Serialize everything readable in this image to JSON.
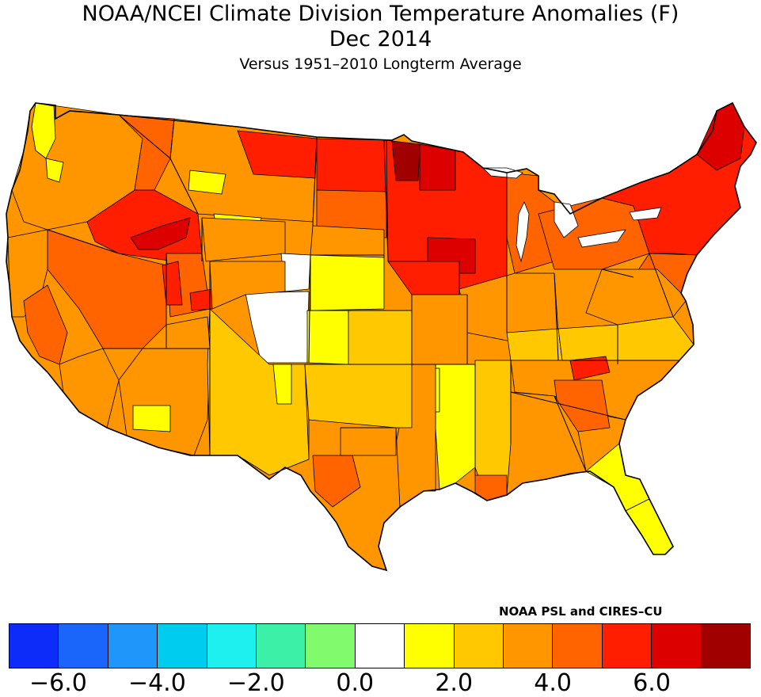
{
  "title": "NOAA/NCEI Climate Division Temperature Anomalies (F)",
  "subtitle_date": "Dec 2014",
  "subtitle_baseline": "Versus 1951–2010 Longterm Average",
  "credit": "NOAA PSL and CIRES–CU",
  "legend": {
    "colors": [
      "#0d2cfa",
      "#1a66fa",
      "#1e96fa",
      "#00ccf0",
      "#1ef0f0",
      "#3cf0a8",
      "#82fa6e",
      "#ffffff",
      "#ffff00",
      "#ffc800",
      "#ff9600",
      "#ff6400",
      "#ff1e00",
      "#dc0000",
      "#a00000"
    ],
    "ticks": [
      "−6.0",
      "−4.0",
      "−2.0",
      "0.0",
      "2.0",
      "4.0",
      "6.0"
    ],
    "bounds": [
      -7,
      -6,
      -5,
      -4,
      -3,
      -2,
      -1,
      0,
      1,
      2,
      3,
      4,
      5,
      6,
      7,
      8
    ]
  },
  "chart_data": {
    "type": "choropleth",
    "title": "NOAA/NCEI Climate Division Temperature Anomalies (F)",
    "period": "Dec 2014",
    "baseline": "1951–2010 Longterm Average",
    "units": "degrees F",
    "approx_regional_anomalies": [
      {
        "region": "Northern Minnesota",
        "value": 7.5
      },
      {
        "region": "North Dakota / South Dakota",
        "value": 5.5
      },
      {
        "region": "Wisconsin / Iowa",
        "value": 5.5
      },
      {
        "region": "Southern Idaho",
        "value": 6.5
      },
      {
        "region": "New England / New York",
        "value": 5.5
      },
      {
        "region": "Eastern Tennessee",
        "value": 5.5
      },
      {
        "region": "Pacific Northwest coast",
        "value": 3.5
      },
      {
        "region": "Nevada",
        "value": 4.5
      },
      {
        "region": "California Central Valley",
        "value": 4.5
      },
      {
        "region": "Montana",
        "value": 3.5
      },
      {
        "region": "Eastern Colorado / Western Kansas",
        "value": 1.5
      },
      {
        "region": "Colorado Rockies",
        "value": 0.5
      },
      {
        "region": "Southern Arizona",
        "value": 1.5
      },
      {
        "region": "New Mexico",
        "value": 2.5
      },
      {
        "region": "Texas",
        "value": 3.5
      },
      {
        "region": "Central Texas",
        "value": 4.5
      },
      {
        "region": "Louisiana coast",
        "value": 4.5
      },
      {
        "region": "Mississippi / Arkansas border",
        "value": 1.5
      },
      {
        "region": "Mid-Atlantic",
        "value": 3.5
      },
      {
        "region": "Georgia / Carolinas",
        "value": 3.5
      },
      {
        "region": "Florida peninsula",
        "value": 1.5
      }
    ]
  }
}
